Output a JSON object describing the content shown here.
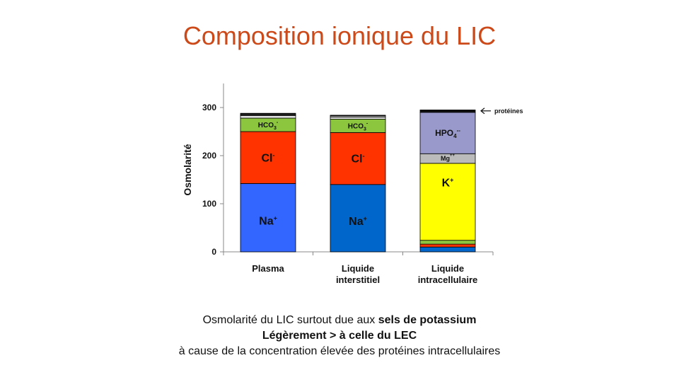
{
  "title": "Composition ionique du LIC",
  "caption": {
    "line1_prefix": "Osmolarité du LIC surtout due aux ",
    "line1_bold": "sels de potassium",
    "line2": "Légèrement > à celle du LEC",
    "line3": "à cause de la concentration élevée des protéines intracellulaires"
  },
  "chart_data": {
    "type": "bar",
    "stacked": true,
    "categories": [
      "Plasma",
      "Liquide interstitiel",
      "Liquide intracellulaire"
    ],
    "category_lines": [
      [
        "Plasma"
      ],
      [
        "Liquide",
        "interstitiel"
      ],
      [
        "Liquide",
        "intracellulaire"
      ]
    ],
    "ylabel": "Osmolarité",
    "ylim": [
      0,
      350
    ],
    "yticks": [
      0,
      100,
      200,
      300
    ],
    "bars": [
      {
        "category": "Plasma",
        "segments": [
          {
            "label": "Na",
            "sup": "+",
            "value": 142,
            "color": "#3366ff"
          },
          {
            "label": "Cl",
            "sup": "-",
            "value": 108,
            "color": "#ff3300"
          },
          {
            "label": "HCO",
            "sub": "3",
            "sup": "-",
            "value": 28,
            "color": "#8cc63f"
          },
          {
            "label": "",
            "value": 5,
            "color": "#e8e8e8"
          },
          {
            "label": "",
            "value": 2,
            "color": "#999999"
          },
          {
            "label": "",
            "value": 3,
            "color": "#111111"
          }
        ]
      },
      {
        "category": "Liquide interstitiel",
        "segments": [
          {
            "label": "Na",
            "sup": "+",
            "value": 140,
            "color": "#0066cc"
          },
          {
            "label": "Cl",
            "sup": "-",
            "value": 108,
            "color": "#ff3300"
          },
          {
            "label": "HCO",
            "sub": "3",
            "sup": "-",
            "value": 28,
            "color": "#8cc63f"
          },
          {
            "label": "",
            "value": 4,
            "color": "#e8e8e8"
          },
          {
            "label": "",
            "value": 3,
            "color": "#999999"
          },
          {
            "label": "",
            "value": 1,
            "color": "#111111"
          }
        ]
      },
      {
        "category": "Liquide intracellulaire",
        "segments": [
          {
            "label": "",
            "value": 10,
            "color": "#0066cc"
          },
          {
            "label": "",
            "value": 6,
            "color": "#ff3300"
          },
          {
            "label": "",
            "value": 8,
            "color": "#8cc63f"
          },
          {
            "label": "K",
            "sup": "+",
            "value": 160,
            "color": "#ffff00"
          },
          {
            "label": "Mg",
            "sup": "++",
            "value": 20,
            "color": "#bbbbbb"
          },
          {
            "label": "HPO",
            "sub": "4",
            "sup": "--",
            "value": 86,
            "color": "#9999cc"
          },
          {
            "label": "",
            "value": 5,
            "color": "#111111"
          }
        ]
      }
    ],
    "annotation": {
      "text": "protéines",
      "bar_index": 2,
      "value": 293
    }
  }
}
